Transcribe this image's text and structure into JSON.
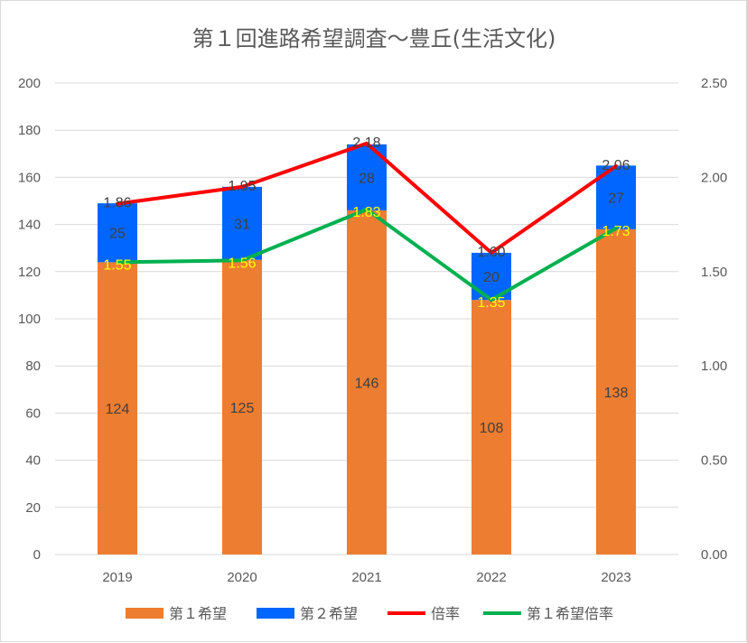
{
  "chart_data": {
    "type": "bar",
    "title": "第１回進路希望調査～豊丘(生活文化)",
    "categories": [
      "2019",
      "2020",
      "2021",
      "2022",
      "2023"
    ],
    "y_left": {
      "ylim": [
        0,
        200
      ],
      "ticks": [
        "0",
        "20",
        "40",
        "60",
        "80",
        "100",
        "120",
        "140",
        "160",
        "180",
        "200"
      ]
    },
    "y_right": {
      "ylim": [
        0,
        2.5
      ],
      "ticks": [
        "0.00",
        "0.50",
        "1.00",
        "1.50",
        "2.00",
        "2.50"
      ]
    },
    "grid": true,
    "legend_position": "bottom",
    "series": [
      {
        "name": "第１希望",
        "kind": "bar",
        "stacked": true,
        "axis": "left",
        "color": "#ED7D31",
        "values": [
          124,
          125,
          146,
          108,
          138
        ],
        "labels": [
          "124",
          "125",
          "146",
          "108",
          "138"
        ]
      },
      {
        "name": "第２希望",
        "kind": "bar",
        "stacked": true,
        "axis": "left",
        "color": "#0066FF",
        "values": [
          25,
          31,
          28,
          20,
          27
        ],
        "labels": [
          "25",
          "31",
          "28",
          "20",
          "27"
        ]
      },
      {
        "name": "倍率",
        "kind": "line",
        "axis": "right",
        "color": "#FF0000",
        "values": [
          1.86,
          1.95,
          2.18,
          1.6,
          2.06
        ],
        "labels": [
          "1.86",
          "1.95",
          "2.18",
          "1.60",
          "2.06"
        ]
      },
      {
        "name": "第１希望倍率",
        "kind": "line",
        "axis": "right",
        "color": "#00B050",
        "values": [
          1.55,
          1.56,
          1.83,
          1.35,
          1.73
        ],
        "labels": [
          "1.55",
          "1.56",
          "1.83",
          "1.35",
          "1.73"
        ]
      }
    ]
  }
}
